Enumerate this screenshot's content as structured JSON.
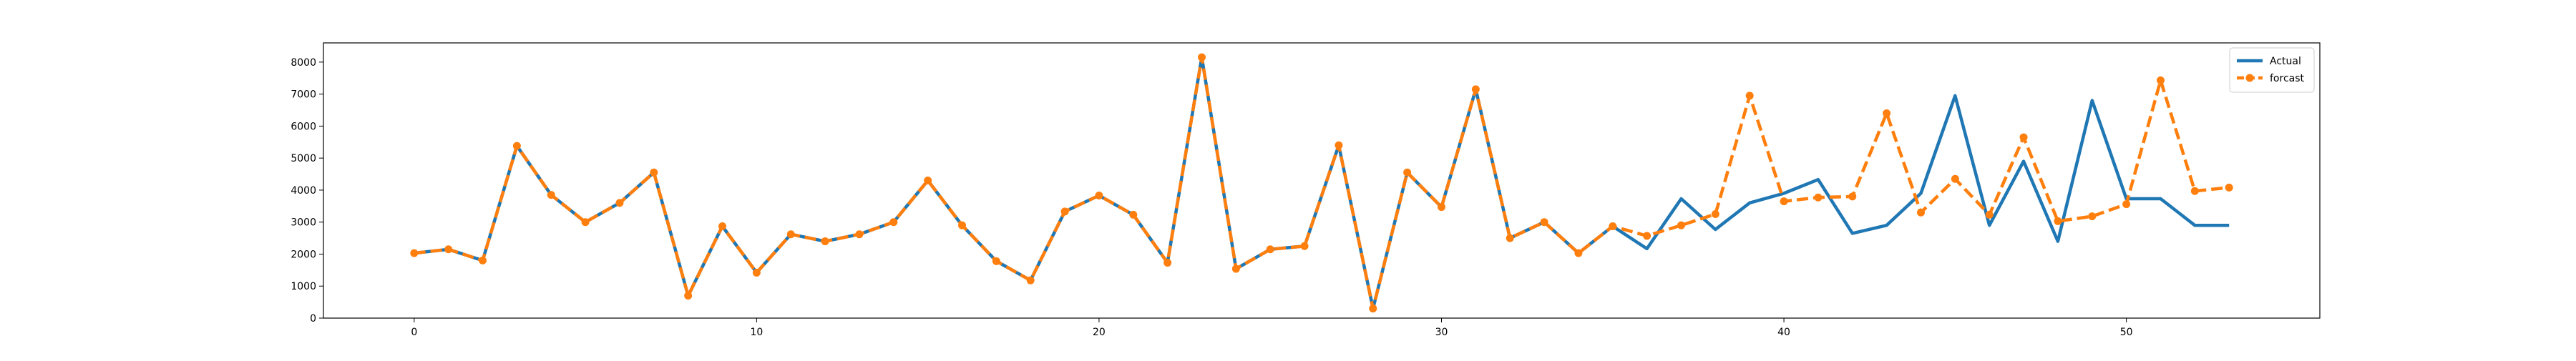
{
  "chart_data": {
    "type": "line",
    "title": "",
    "xlabel": "",
    "ylabel": "",
    "xlim": [
      -2.65,
      55.65
    ],
    "ylim": [
      0,
      8600
    ],
    "xticks": [
      0,
      10,
      20,
      30,
      40,
      50
    ],
    "yticks": [
      0,
      1000,
      2000,
      3000,
      4000,
      5000,
      6000,
      7000,
      8000
    ],
    "xtick_labels": [
      "0",
      "10",
      "20",
      "30",
      "40",
      "50"
    ],
    "ytick_labels": [
      "0",
      "1000",
      "2000",
      "3000",
      "4000",
      "5000",
      "6000",
      "7000",
      "8000"
    ],
    "grid": false,
    "legend_position": "top-right",
    "series": [
      {
        "name": "Actual",
        "color": "#1f77b4",
        "style": "solid",
        "marker": "none",
        "x": [
          0,
          1,
          2,
          3,
          4,
          5,
          6,
          7,
          8,
          9,
          10,
          11,
          12,
          13,
          14,
          15,
          16,
          17,
          18,
          19,
          20,
          21,
          22,
          23,
          24,
          25,
          26,
          27,
          28,
          29,
          30,
          31,
          32,
          33,
          34,
          35,
          36,
          37,
          38,
          39,
          40,
          41,
          42,
          43,
          44,
          45,
          46,
          47,
          48,
          49,
          50,
          51,
          52,
          53
        ],
        "values": [
          2030,
          2150,
          1800,
          5380,
          3850,
          3000,
          3600,
          4550,
          700,
          2870,
          1420,
          2620,
          2400,
          2620,
          3000,
          4300,
          2900,
          1780,
          1180,
          3330,
          3830,
          3230,
          1730,
          8150,
          1540,
          2150,
          2250,
          5400,
          300,
          4550,
          3470,
          7150,
          2500,
          3000,
          2030,
          2870,
          2170,
          3730,
          2770,
          3600,
          3900,
          4330,
          2650,
          2900,
          3900,
          6950,
          2900,
          4900,
          2400,
          6800,
          3730,
          3730,
          2900,
          2900
        ]
      },
      {
        "name": "forcast",
        "color": "#ff7f0e",
        "style": "dashed",
        "marker": "circle",
        "x": [
          0,
          1,
          2,
          3,
          4,
          5,
          6,
          7,
          8,
          9,
          10,
          11,
          12,
          13,
          14,
          15,
          16,
          17,
          18,
          19,
          20,
          21,
          22,
          23,
          24,
          25,
          26,
          27,
          28,
          29,
          30,
          31,
          32,
          33,
          34,
          35,
          36,
          37,
          38,
          39,
          40,
          41,
          42,
          43,
          44,
          45,
          46,
          47,
          48,
          49,
          50,
          51,
          52,
          53
        ],
        "values": [
          2030,
          2150,
          1800,
          5380,
          3850,
          3000,
          3600,
          4550,
          700,
          2870,
          1420,
          2620,
          2400,
          2620,
          3000,
          4300,
          2900,
          1780,
          1180,
          3330,
          3830,
          3230,
          1730,
          8150,
          1540,
          2150,
          2250,
          5400,
          300,
          4550,
          3470,
          7150,
          2500,
          3000,
          2030,
          2870,
          2570,
          2900,
          3250,
          6950,
          3650,
          3770,
          3800,
          6400,
          3300,
          4350,
          3230,
          5650,
          3030,
          3180,
          3560,
          7430,
          3970,
          4080
        ]
      }
    ]
  }
}
